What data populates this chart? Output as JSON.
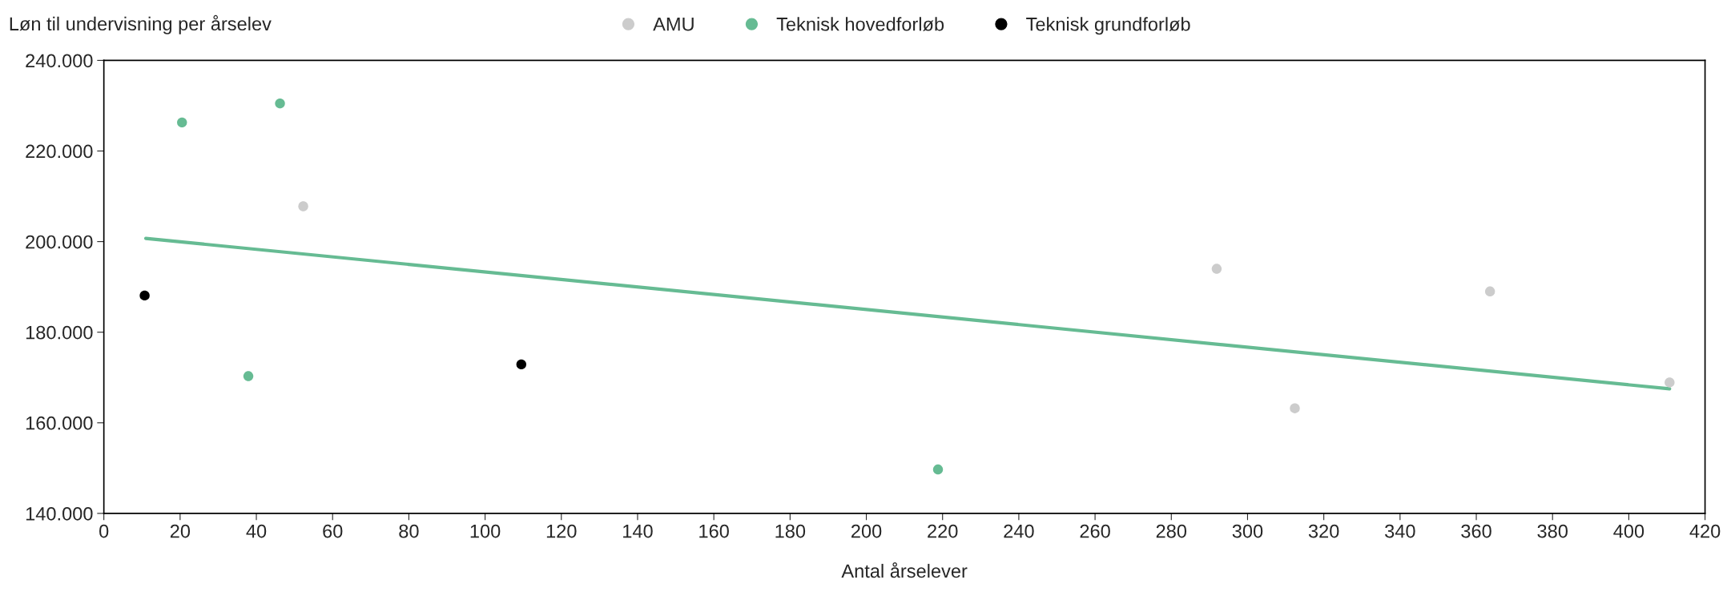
{
  "chart_data": {
    "type": "scatter",
    "ylabel": "Løn til undervisning per årselev",
    "xlabel": "Antal årselever",
    "xlim": [
      0,
      420
    ],
    "xticks": [
      0,
      20,
      40,
      60,
      80,
      100,
      120,
      140,
      160,
      180,
      200,
      220,
      240,
      260,
      280,
      300,
      320,
      340,
      360,
      380,
      400,
      420
    ],
    "ylim": [
      140000,
      240000
    ],
    "yticks": [
      {
        "value": 140000,
        "label": "140.000"
      },
      {
        "value": 160000,
        "label": "160.000"
      },
      {
        "value": 180000,
        "label": "180.000"
      },
      {
        "value": 200000,
        "label": "200.000"
      },
      {
        "value": 220000,
        "label": "220.000"
      },
      {
        "value": 240000,
        "label": "240.000"
      }
    ],
    "grid": false,
    "legend": "top",
    "marker": "circle",
    "series": [
      {
        "name": "AMU",
        "color": "#cccccc",
        "x": [
          52.3,
          291.9,
          312.4,
          363.6,
          410.7
        ],
        "values": [
          207800,
          194000,
          163200,
          189000,
          168900
        ]
      },
      {
        "name": "Teknisk hovedforløb",
        "color": "#66bb93",
        "x": [
          20.5,
          46.2,
          37.9,
          218.8
        ],
        "values": [
          226300,
          230500,
          170300,
          149700
        ]
      },
      {
        "name": "Teknisk grundforløb",
        "color": "#000000",
        "x": [
          10.7,
          109.5
        ],
        "values": [
          188100,
          172900
        ]
      },
      {
        "type": "line",
        "marker": "none",
        "color": "#66bb93",
        "x": [
          11,
          410.7
        ],
        "values": [
          200700,
          167500
        ]
      }
    ]
  }
}
